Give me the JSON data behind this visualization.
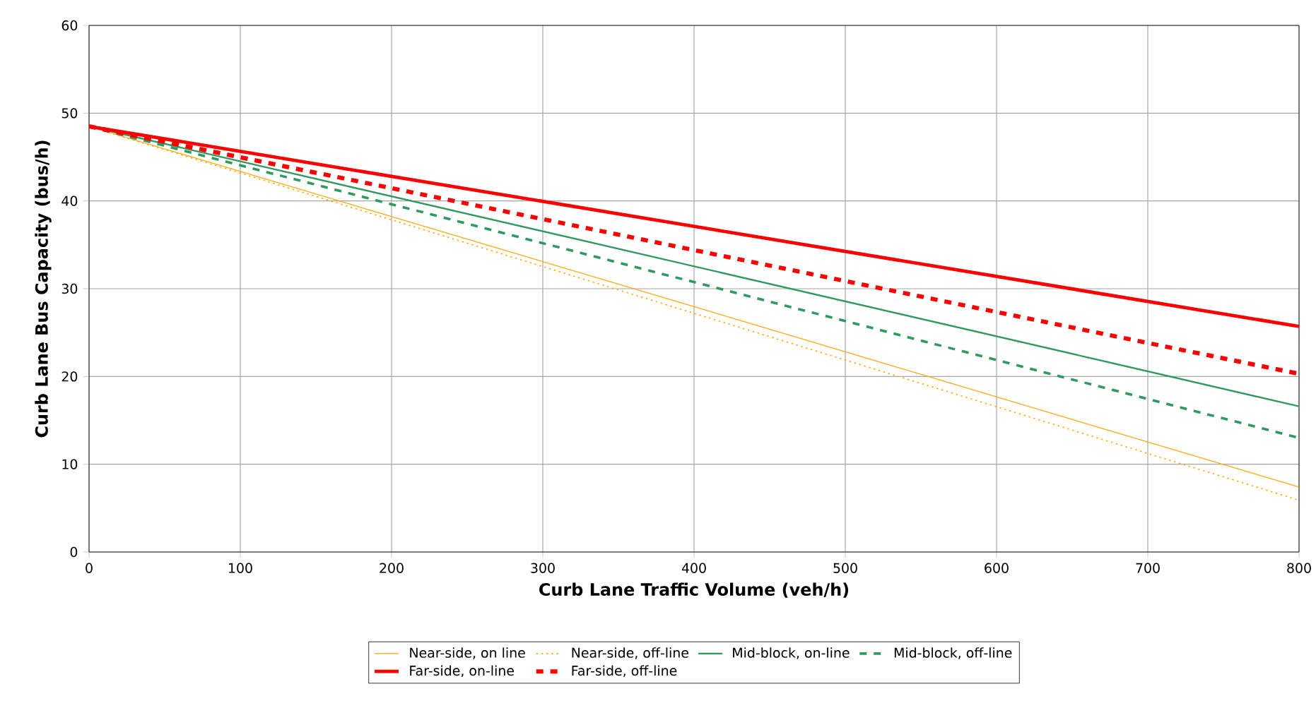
{
  "chart_data": {
    "type": "line",
    "xlabel": "Curb Lane Traffic Volume (veh/h)",
    "ylabel": "Curb Lane Bus Capacity (bus/h)",
    "x": [
      0,
      800
    ],
    "xlim": [
      0,
      800
    ],
    "ylim": [
      0,
      60
    ],
    "xticks": [
      0,
      100,
      200,
      300,
      400,
      500,
      600,
      700,
      800
    ],
    "yticks": [
      0,
      10,
      20,
      30,
      40,
      50,
      60
    ],
    "grid": true,
    "legend": "bottom",
    "marker": "none",
    "series": [
      {
        "name": "Near-side, on line",
        "color": "#ffa500",
        "line_style": "solid",
        "values": [
          48.5,
          7.4
        ]
      },
      {
        "name": "Near-side, off-line",
        "color": "#ffa500",
        "line_style": "dotted",
        "values": [
          48.5,
          5.9
        ]
      },
      {
        "name": "Mid-block, on-line",
        "color": "#2e9a5e",
        "line_style": "solid",
        "values": [
          48.5,
          16.6
        ]
      },
      {
        "name": "Mid-block, off-line",
        "color": "#2e9a5e",
        "line_style": "dashed",
        "values": [
          48.5,
          13.0
        ]
      },
      {
        "name": "Far-side, on-line",
        "color": "#ff0000",
        "line_style": "solid",
        "values": [
          48.5,
          25.7
        ]
      },
      {
        "name": "Far-side, off-line",
        "color": "#ff0000",
        "line_style": "dashed",
        "values": [
          48.5,
          20.3
        ]
      }
    ]
  }
}
